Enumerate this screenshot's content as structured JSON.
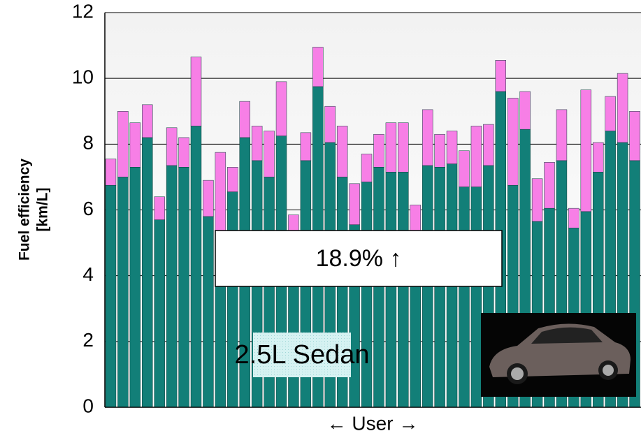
{
  "chart_data": {
    "type": "stacked_bar",
    "y_label": [
      "Fuel efficiency",
      "[km/L]"
    ],
    "x_label": "← User →",
    "annotations": [
      "18.9% ↑",
      "2.5L Sedan"
    ],
    "ylim": [
      0,
      12
    ],
    "yticks": [
      0,
      2,
      4,
      6,
      8,
      10,
      12
    ],
    "grid": true,
    "series": [
      {
        "color": "#127f78",
        "values": [
          6.75,
          7.0,
          7.3,
          8.2,
          5.7,
          7.35,
          7.3,
          8.55,
          5.8,
          5.3,
          6.55,
          8.2,
          7.5,
          7.0,
          8.25,
          5.2,
          7.5,
          9.75,
          8.05,
          7.0,
          5.55,
          6.85,
          7.3,
          7.15,
          7.15,
          5.3,
          7.35,
          7.3,
          7.4,
          6.7,
          6.7,
          7.35,
          9.6,
          6.75,
          8.45,
          5.65,
          6.05,
          7.5,
          5.45,
          5.95,
          7.15,
          8.4,
          8.05,
          7.5
        ]
      },
      {
        "color": "#f77fe6",
        "values": [
          0.8,
          2.0,
          1.35,
          1.0,
          0.7,
          1.15,
          0.9,
          2.1,
          1.1,
          2.45,
          0.75,
          1.1,
          1.05,
          1.4,
          1.65,
          0.65,
          0.85,
          1.2,
          1.1,
          1.55,
          1.25,
          0.85,
          1.0,
          1.5,
          1.5,
          0.85,
          1.7,
          1.0,
          1.0,
          1.1,
          1.85,
          1.25,
          0.95,
          2.65,
          1.15,
          1.3,
          1.4,
          1.55,
          0.6,
          3.7,
          0.9,
          1.05,
          2.1,
          1.5
        ]
      }
    ]
  }
}
